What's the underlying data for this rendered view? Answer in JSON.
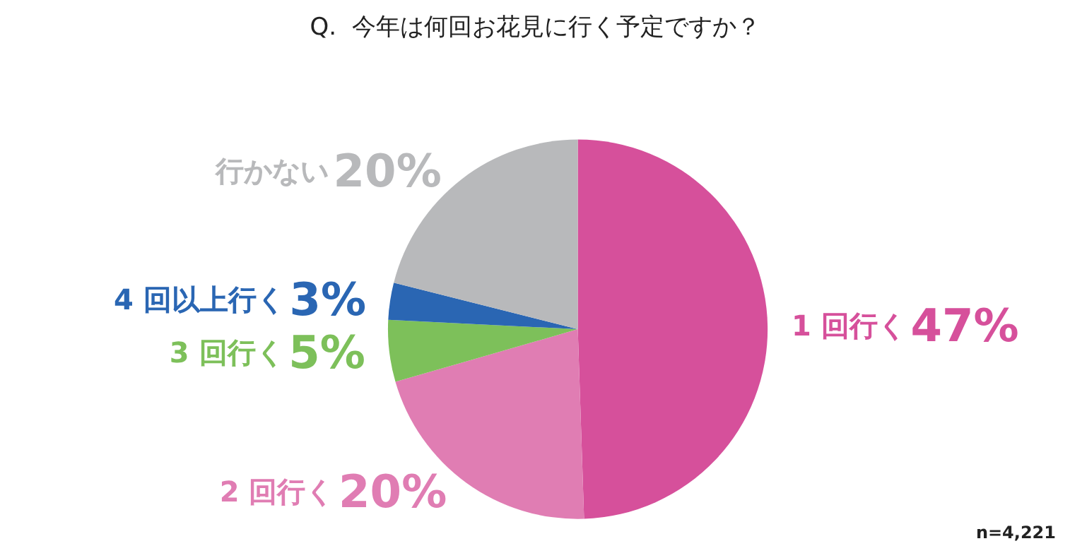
{
  "chart_data": {
    "type": "pie",
    "title": "Q.  今年は何回お花見に行く予定ですか？",
    "categories": [
      "1 回行く",
      "2 回行く",
      "3 回行く",
      "4 回以上行く",
      "行かない"
    ],
    "values": [
      47,
      20,
      5,
      3,
      20
    ],
    "value_labels": [
      "47%",
      "20%",
      "5%",
      "3%",
      "20%"
    ],
    "colors": [
      "#d6509b",
      "#e07db3",
      "#7dc05a",
      "#2a66b3",
      "#b8b9bb"
    ],
    "annotations": [
      "n=4,221"
    ],
    "legend": false
  }
}
